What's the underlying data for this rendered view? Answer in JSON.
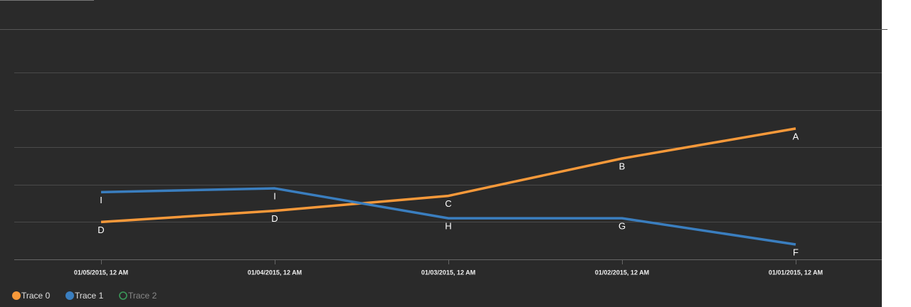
{
  "chart_data": {
    "type": "line",
    "categories": [
      "01/05/2015, 12 AM",
      "01/04/2015, 12 AM",
      "01/03/2015, 12 AM",
      "01/02/2015, 12 AM",
      "01/01/2015, 12 AM"
    ],
    "series": [
      {
        "name": "Trace 0",
        "color": "#f7993a",
        "values": [
          1,
          1.3,
          1.7,
          2.7,
          3.5
        ],
        "labels": [
          "D",
          "D",
          "C",
          "B",
          "A"
        ],
        "visible": true
      },
      {
        "name": "Trace 1",
        "color": "#3a7ebf",
        "values": [
          1.8,
          1.9,
          1.1,
          1.1,
          0.4
        ],
        "labels": [
          "I",
          "I",
          "H",
          "G",
          "F"
        ],
        "visible": true
      },
      {
        "name": "Trace 2",
        "color": "#3a9a5a",
        "values": [
          null,
          null,
          null,
          null,
          null
        ],
        "labels": [
          null,
          null,
          null,
          null,
          null
        ],
        "visible": false
      }
    ],
    "ylim": [
      0,
      6
    ],
    "yticks": [
      0,
      1,
      2,
      3,
      4,
      5
    ],
    "grid": true,
    "legend": "bottom-left"
  }
}
